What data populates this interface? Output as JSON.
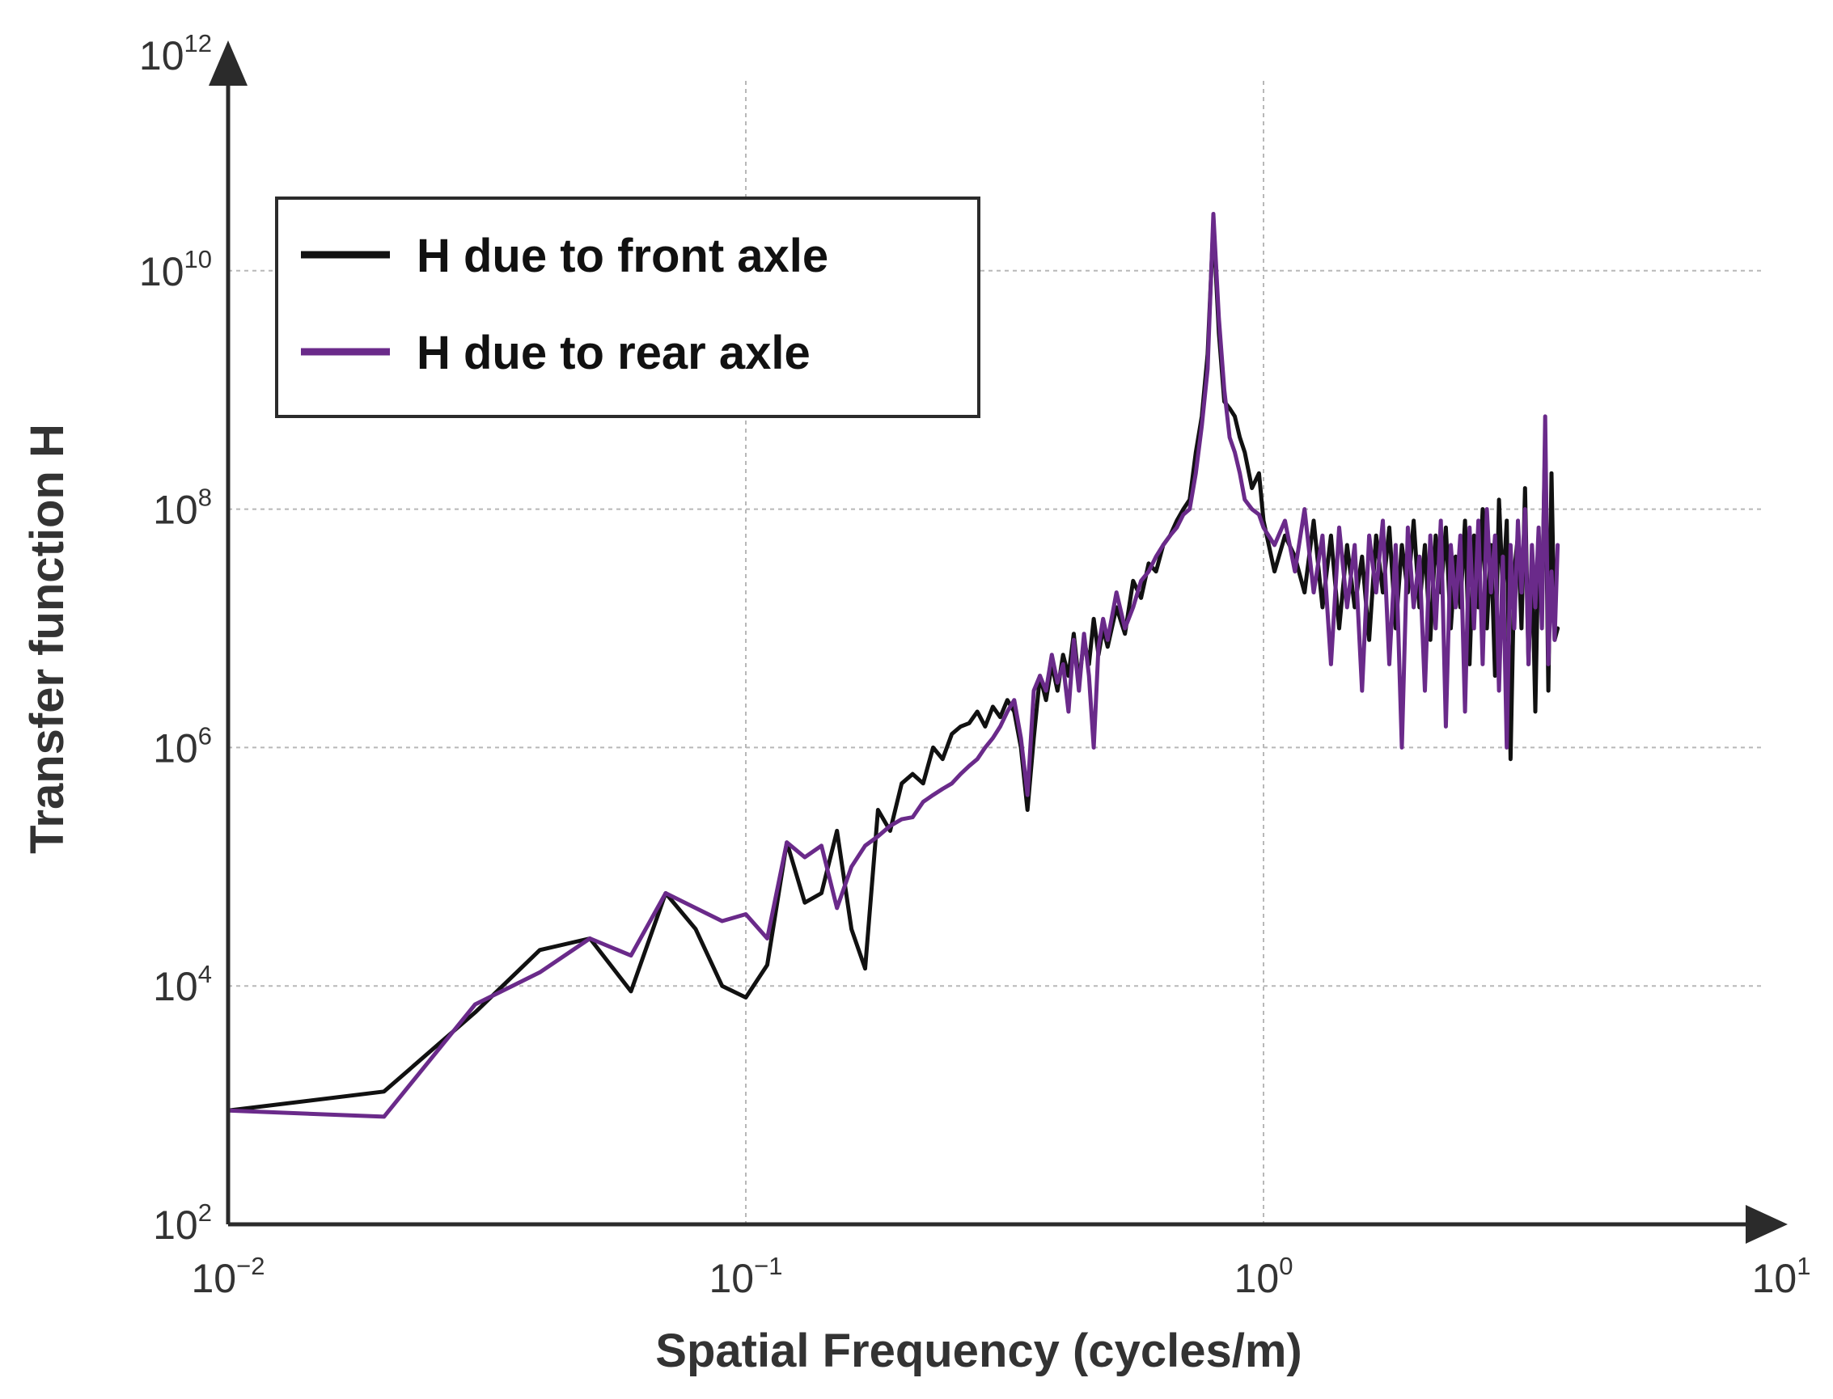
{
  "chart_data": {
    "type": "line",
    "xlabel": "Spatial Frequency (cycles/m)",
    "ylabel": "Transfer function H",
    "x_scale": "log",
    "y_scale": "log",
    "xlim": [
      0.01,
      10
    ],
    "ylim": [
      100,
      1000000000000
    ],
    "x_ticks": [
      {
        "base": "10",
        "exp": "−2"
      },
      {
        "base": "10",
        "exp": "−1"
      },
      {
        "base": "10",
        "exp": "0"
      },
      {
        "base": "10",
        "exp": "1"
      }
    ],
    "y_ticks": [
      {
        "base": "10",
        "exp": "2"
      },
      {
        "base": "10",
        "exp": "4"
      },
      {
        "base": "10",
        "exp": "6"
      },
      {
        "base": "10",
        "exp": "8"
      },
      {
        "base": "10",
        "exp": "10"
      },
      {
        "base": "10",
        "exp": "12"
      }
    ],
    "grid": true,
    "legend_position": "top-left",
    "series": [
      {
        "name": "H due to front axle",
        "color": "#111111",
        "x": [
          0.01,
          0.02,
          0.03,
          0.04,
          0.05,
          0.06,
          0.07,
          0.08,
          0.09,
          0.1,
          0.11,
          0.12,
          0.13,
          0.14,
          0.15,
          0.16,
          0.17,
          0.18,
          0.19,
          0.2,
          0.21,
          0.22,
          0.23,
          0.24,
          0.25,
          0.26,
          0.27,
          0.28,
          0.29,
          0.3,
          0.31,
          0.32,
          0.33,
          0.34,
          0.35,
          0.36,
          0.37,
          0.38,
          0.39,
          0.4,
          0.41,
          0.42,
          0.43,
          0.44,
          0.45,
          0.46,
          0.47,
          0.48,
          0.49,
          0.5,
          0.52,
          0.54,
          0.56,
          0.58,
          0.6,
          0.62,
          0.64,
          0.66,
          0.68,
          0.7,
          0.72,
          0.74,
          0.76,
          0.78,
          0.8,
          0.82,
          0.84,
          0.86,
          0.88,
          0.9,
          0.92,
          0.95,
          0.98,
          1.0,
          1.05,
          1.1,
          1.15,
          1.2,
          1.25,
          1.3,
          1.35,
          1.4,
          1.45,
          1.5,
          1.55,
          1.6,
          1.65,
          1.7,
          1.75,
          1.8,
          1.85,
          1.9,
          1.95,
          2.0,
          2.05,
          2.1,
          2.15,
          2.2,
          2.25,
          2.3,
          2.35,
          2.4,
          2.45,
          2.5,
          2.55,
          2.6,
          2.65,
          2.7,
          2.75,
          2.8,
          2.85,
          2.9,
          2.95,
          3.0,
          3.05,
          3.1,
          3.15,
          3.2,
          3.25,
          3.3,
          3.35,
          3.4,
          3.45,
          3.5,
          3.55,
          3.6,
          3.65,
          3.7
        ],
        "y": [
          900,
          1300,
          6000,
          20000,
          25000,
          9000,
          60000,
          30000,
          10000,
          8000,
          15000,
          160000,
          50000,
          60000,
          200000,
          30000,
          14000,
          300000,
          200000,
          500000,
          600000,
          500000,
          1000000,
          800000,
          1300000,
          1500000,
          1600000,
          2000000,
          1500000,
          2200000,
          1800000,
          2500000,
          2000000,
          1000000,
          300000,
          1200000,
          4000000,
          2500000,
          5000000,
          3000000,
          6000000,
          4000000,
          9000000,
          3500000,
          8000000,
          5000000,
          12000000,
          6000000,
          10000000,
          7000000,
          15000000,
          9000000,
          25000000,
          18000000,
          35000000,
          30000000,
          50000000,
          60000000,
          80000000,
          100000000,
          120000000,
          300000000,
          600000000,
          2000000000,
          25000000000,
          3000000000,
          800000000,
          700000000,
          600000000,
          400000000,
          300000000,
          150000000,
          200000000,
          80000000,
          30000000,
          60000000,
          40000000,
          20000000,
          80000000,
          15000000,
          60000000,
          10000000,
          50000000,
          15000000,
          40000000,
          8000000,
          60000000,
          20000000,
          70000000,
          10000000,
          50000000,
          20000000,
          80000000,
          15000000,
          50000000,
          8000000,
          60000000,
          20000000,
          70000000,
          10000000,
          40000000,
          15000000,
          80000000,
          5000000,
          60000000,
          15000000,
          100000000,
          10000000,
          50000000,
          4000000,
          120000000,
          20000000,
          80000000,
          800000,
          30000000,
          60000000,
          10000000,
          150000000,
          5000000,
          40000000,
          2000000,
          60000000,
          15000000,
          400000000,
          3000000,
          200000000,
          8000000,
          10000000
        ]
      },
      {
        "name": "H due to rear axle",
        "color": "#6a2a8a",
        "x": [
          0.01,
          0.02,
          0.03,
          0.04,
          0.05,
          0.06,
          0.07,
          0.08,
          0.09,
          0.1,
          0.11,
          0.12,
          0.13,
          0.14,
          0.15,
          0.16,
          0.17,
          0.18,
          0.19,
          0.2,
          0.21,
          0.22,
          0.23,
          0.24,
          0.25,
          0.26,
          0.27,
          0.28,
          0.29,
          0.3,
          0.31,
          0.32,
          0.33,
          0.34,
          0.35,
          0.36,
          0.37,
          0.38,
          0.39,
          0.4,
          0.41,
          0.42,
          0.43,
          0.44,
          0.45,
          0.46,
          0.47,
          0.48,
          0.49,
          0.5,
          0.52,
          0.54,
          0.56,
          0.58,
          0.6,
          0.62,
          0.64,
          0.66,
          0.68,
          0.7,
          0.72,
          0.74,
          0.76,
          0.78,
          0.8,
          0.82,
          0.84,
          0.86,
          0.88,
          0.9,
          0.92,
          0.95,
          0.98,
          1.0,
          1.05,
          1.1,
          1.15,
          1.2,
          1.25,
          1.3,
          1.35,
          1.4,
          1.45,
          1.5,
          1.55,
          1.6,
          1.65,
          1.7,
          1.75,
          1.8,
          1.85,
          1.9,
          1.95,
          2.0,
          2.05,
          2.1,
          2.15,
          2.2,
          2.25,
          2.3,
          2.35,
          2.4,
          2.45,
          2.5,
          2.55,
          2.6,
          2.65,
          2.7,
          2.75,
          2.8,
          2.85,
          2.9,
          2.95,
          3.0,
          3.05,
          3.1,
          3.15,
          3.2,
          3.25,
          3.3,
          3.35,
          3.4,
          3.45,
          3.5,
          3.55,
          3.6,
          3.65,
          3.7
        ],
        "y": [
          900,
          800,
          7000,
          13000,
          25000,
          18000,
          60000,
          45000,
          35000,
          40000,
          25000,
          160000,
          120000,
          150000,
          45000,
          100000,
          150000,
          180000,
          220000,
          250000,
          260000,
          350000,
          400000,
          450000,
          500000,
          600000,
          700000,
          800000,
          1000000,
          1200000,
          1500000,
          2000000,
          2500000,
          1200000,
          400000,
          3000000,
          4000000,
          3000000,
          6000000,
          3500000,
          5000000,
          2000000,
          8000000,
          3000000,
          9000000,
          4000000,
          1000000,
          7000000,
          12000000,
          8000000,
          20000000,
          10000000,
          15000000,
          25000000,
          30000000,
          40000000,
          50000000,
          60000000,
          70000000,
          90000000,
          100000000,
          200000000,
          500000000,
          1500000000,
          30000000000,
          4000000000,
          1000000000,
          400000000,
          300000000,
          200000000,
          120000000,
          100000000,
          90000000,
          70000000,
          50000000,
          80000000,
          30000000,
          100000000,
          20000000,
          60000000,
          5000000,
          70000000,
          15000000,
          50000000,
          3000000,
          60000000,
          20000000,
          80000000,
          5000000,
          50000000,
          1000000,
          70000000,
          15000000,
          40000000,
          3000000,
          60000000,
          10000000,
          80000000,
          1500000,
          50000000,
          15000000,
          60000000,
          2000000,
          70000000,
          10000000,
          80000000,
          5000000,
          100000000,
          20000000,
          60000000,
          3000000,
          40000000,
          1000000,
          50000000,
          10000000,
          80000000,
          20000000,
          100000000,
          5000000,
          50000000,
          15000000,
          70000000,
          10000000,
          600000000,
          5000000,
          30000000,
          8000000,
          50000000
        ]
      }
    ]
  }
}
